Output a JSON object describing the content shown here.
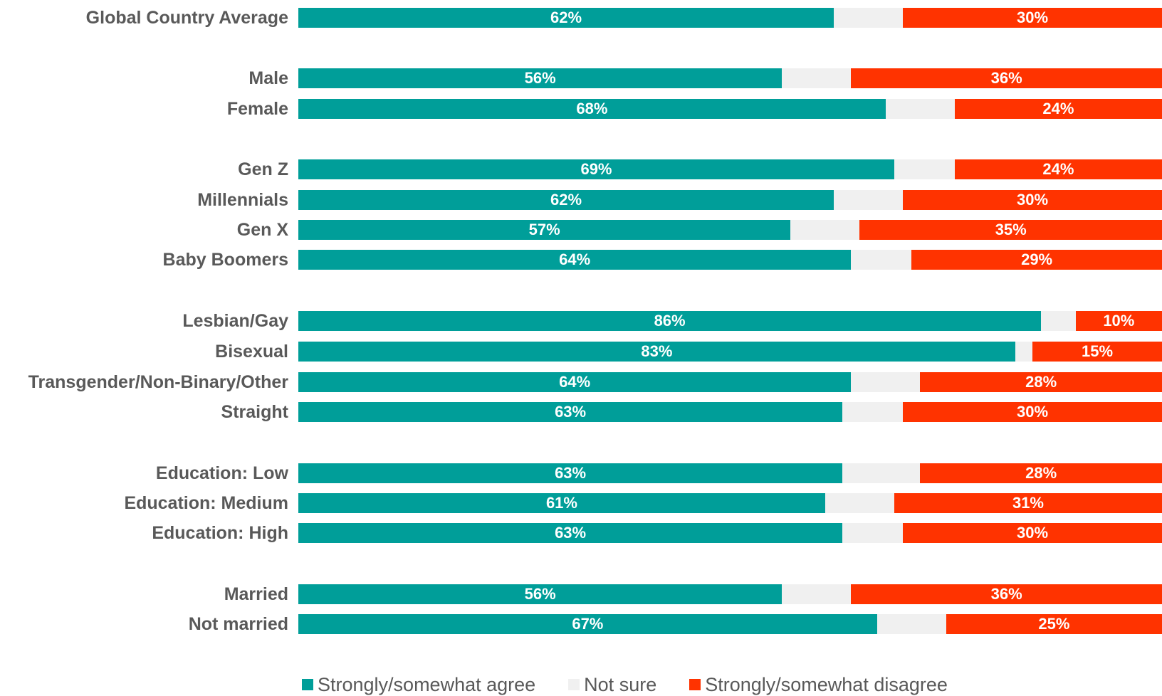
{
  "chart_data": {
    "type": "bar",
    "orientation": "horizontal",
    "stacked": true,
    "normalized": true,
    "xlim": [
      0,
      100
    ],
    "categories": [
      "Global Country Average",
      "Male",
      "Female",
      "Gen Z",
      "Millennials",
      "Gen X",
      "Baby Boomers",
      "Lesbian/Gay",
      "Bisexual",
      "Transgender/Non-Binary/Other",
      "Straight",
      "Education: Low",
      "Education: Medium",
      "Education: High",
      "Married",
      "Not married"
    ],
    "groups": [
      [
        0
      ],
      [
        1,
        2
      ],
      [
        3,
        4,
        5,
        6
      ],
      [
        7,
        8,
        9,
        10
      ],
      [
        11,
        12,
        13
      ],
      [
        14,
        15
      ]
    ],
    "series": [
      {
        "name": "Strongly/somewhat agree",
        "color": "#009e99",
        "values": [
          62,
          56,
          68,
          69,
          62,
          57,
          64,
          86,
          83,
          64,
          63,
          63,
          61,
          63,
          56,
          67
        ],
        "labels": [
          "62%",
          "56%",
          "68%",
          "69%",
          "62%",
          "57%",
          "64%",
          "86%",
          "83%",
          "64%",
          "63%",
          "63%",
          "61%",
          "63%",
          "56%",
          "67%"
        ]
      },
      {
        "name": "Not sure",
        "color": "#f0f0f0",
        "values": [
          8,
          8,
          8,
          7,
          8,
          8,
          7,
          4,
          2,
          8,
          7,
          9,
          8,
          7,
          8,
          8
        ],
        "labels": []
      },
      {
        "name": "Strongly/somewhat disagree",
        "color": "#ff3300",
        "values": [
          30,
          36,
          24,
          24,
          30,
          35,
          29,
          10,
          15,
          28,
          30,
          28,
          31,
          30,
          36,
          25
        ],
        "labels": [
          "30%",
          "36%",
          "24%",
          "24%",
          "30%",
          "35%",
          "29%",
          "10%",
          "15%",
          "28%",
          "30%",
          "28%",
          "31%",
          "30%",
          "36%",
          "25%"
        ]
      }
    ],
    "legend": {
      "position": "bottom"
    },
    "grid": false
  }
}
